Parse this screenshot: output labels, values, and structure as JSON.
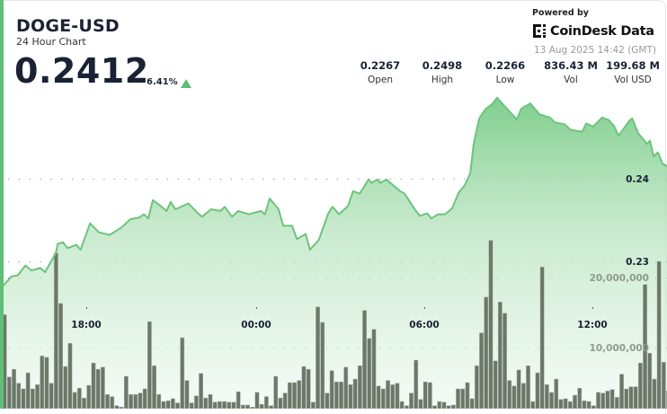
{
  "header": {
    "symbol": "DOGE-USD",
    "subtitle": "24 Hour Chart",
    "price": "0.2412",
    "change": "6.41%",
    "change_direction": "up",
    "up_color": "#5fbf74"
  },
  "stats": [
    {
      "value": "0.2267",
      "label": "Open"
    },
    {
      "value": "0.2498",
      "label": "High"
    },
    {
      "value": "0.2266",
      "label": "Low"
    },
    {
      "value": "836.43 M",
      "label": "Vol"
    },
    {
      "value": "199.68 M",
      "label": "Vol USD"
    }
  ],
  "branding": {
    "powered_by": "Powered by",
    "logo_text": "CoinDesk Data",
    "timestamp": "13 Aug 2025 14:42 (GMT)"
  },
  "chart_data": {
    "type": "area",
    "title": "",
    "xlabel": "",
    "ylabel": "",
    "grid": "dotted horizontal",
    "line_color": "#6cc47c",
    "volume_color": "#6b7768",
    "x_ticks": [
      "18:00",
      "00:00",
      "06:00",
      "12:00"
    ],
    "price_ticks": [
      {
        "value": 0.24,
        "label": "0.24"
      },
      {
        "value": 0.23,
        "label": "0.23"
      }
    ],
    "volume_ticks": [
      {
        "value": 20000000,
        "label": "20,000,000"
      },
      {
        "value": 10000000,
        "label": "10,000,000"
      }
    ],
    "price_series": {
      "x": [
        "15:06",
        "15:21",
        "15:34",
        "15:50",
        "16:03",
        "16:22",
        "16:32",
        "16:55",
        "16:59",
        "17:10",
        "17:20",
        "17:39",
        "17:48",
        "18:08",
        "18:27",
        "18:50",
        "19:15",
        "19:34",
        "19:53",
        "20:03",
        "20:12",
        "20:22",
        "20:41",
        "20:51",
        "21:00",
        "21:10",
        "21:38",
        "21:58",
        "22:07",
        "22:26",
        "22:46",
        "22:55",
        "23:11",
        "23:24",
        "23:47",
        "00:12",
        "00:21",
        "00:31",
        "00:50",
        "01:00",
        "01:19",
        "01:29",
        "01:48",
        "01:57",
        "02:16",
        "02:36",
        "02:45",
        "02:59",
        "03:18",
        "03:29",
        "03:43",
        "04:02",
        "04:08",
        "04:21",
        "04:27",
        "04:40",
        "05:09",
        "05:19",
        "05:38",
        "05:51",
        "06:07",
        "06:16",
        "06:30",
        "06:45",
        "07:00",
        "07:14",
        "07:27",
        "07:39",
        "07:46",
        "07:58",
        "08:11",
        "08:25",
        "08:36",
        "08:55",
        "09:18",
        "09:28",
        "09:47",
        "10:06",
        "10:29",
        "10:39",
        "11:00",
        "11:13",
        "11:38",
        "11:46",
        "12:01",
        "12:20",
        "12:34",
        "12:45",
        "12:55",
        "13:18",
        "13:24",
        "13:37",
        "13:56",
        "14:02",
        "14:10",
        "14:19",
        "14:29",
        "14:38"
      ],
      "y": [
        0.2271,
        0.2282,
        0.2283,
        0.2295,
        0.2289,
        0.2292,
        0.2287,
        0.231,
        0.2321,
        0.2323,
        0.2316,
        0.232,
        0.2314,
        0.2346,
        0.2335,
        0.2332,
        0.2341,
        0.2351,
        0.2353,
        0.2357,
        0.2352,
        0.2374,
        0.2366,
        0.2361,
        0.2372,
        0.2363,
        0.237,
        0.2358,
        0.2354,
        0.2363,
        0.2361,
        0.2366,
        0.2354,
        0.2361,
        0.2357,
        0.2361,
        0.2357,
        0.2376,
        0.2363,
        0.2343,
        0.2343,
        0.2327,
        0.2333,
        0.2314,
        0.2326,
        0.2358,
        0.2366,
        0.2357,
        0.2367,
        0.2385,
        0.2382,
        0.2399,
        0.2395,
        0.2399,
        0.2395,
        0.2399,
        0.2385,
        0.2382,
        0.2365,
        0.2355,
        0.2358,
        0.2352,
        0.2357,
        0.2357,
        0.2364,
        0.2383,
        0.2392,
        0.2407,
        0.2442,
        0.2473,
        0.2484,
        0.249,
        0.2498,
        0.2486,
        0.2472,
        0.2485,
        0.2491,
        0.2478,
        0.2474,
        0.2468,
        0.2466,
        0.2459,
        0.2457,
        0.2467,
        0.2463,
        0.2474,
        0.2471,
        0.2464,
        0.2452,
        0.247,
        0.2473,
        0.2455,
        0.2442,
        0.2446,
        0.2427,
        0.2432,
        0.2418,
        0.2415
      ]
    },
    "volume_series": {
      "interval": "10m",
      "values": [
        14700000,
        5800000,
        6900000,
        4900000,
        4100000,
        6400000,
        4100000,
        4700000,
        8800000,
        8600000,
        4900000,
        23500000,
        16300000,
        7300000,
        10600000,
        3600000,
        4200000,
        2800000,
        4600000,
        7800000,
        6900000,
        7200000,
        3300000,
        3000000,
        1700000,
        1500000,
        5900000,
        3300000,
        3300000,
        3500000,
        4100000,
        13700000,
        7400000,
        3300000,
        2300000,
        2400000,
        2700000,
        2100000,
        11400000,
        5300000,
        2100000,
        3100000,
        6300000,
        2800000,
        3300000,
        2200000,
        2300000,
        2300000,
        2200000,
        2200000,
        3700000,
        1800000,
        1800000,
        1500000,
        3600000,
        1900000,
        3000000,
        1700000,
        5900000,
        2800000,
        3500000,
        5000000,
        5000000,
        5300000,
        7300000,
        6900000,
        2200000,
        15800000,
        13600000,
        3500000,
        6700000,
        5100000,
        5100000,
        7200000,
        4700000,
        5500000,
        7400000,
        15300000,
        11300000,
        12600000,
        4500000,
        4100000,
        5300000,
        4700000,
        4900000,
        2300000,
        1700000,
        3500000,
        8200000,
        2600000,
        5100000,
        5000000,
        1700000,
        2300000,
        2200000,
        1700000,
        1800000,
        4100000,
        4100000,
        5000000,
        2700000,
        7400000,
        12100000,
        17200000,
        25300000,
        8100000,
        16500000,
        14900000,
        5300000,
        4500000,
        6800000,
        4900000,
        7400000,
        2300000,
        6400000,
        21500000,
        4700000,
        3600000,
        5500000,
        2600000,
        2700000,
        2300000,
        3200000,
        4200000,
        2400000,
        2300000,
        1700000,
        3600000,
        3500000,
        3800000,
        4000000,
        2900000,
        6200000,
        4100000,
        4400000,
        4400000,
        7800000,
        19000000,
        9200000,
        5500000,
        22300000,
        7900000,
        3800000
      ]
    }
  }
}
